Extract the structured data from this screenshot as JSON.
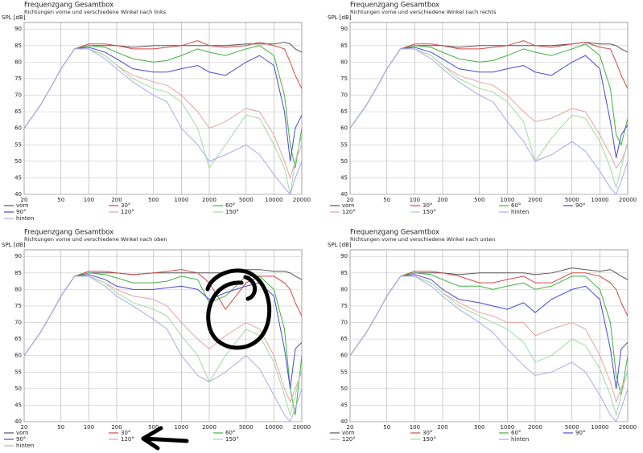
{
  "chart_data": [
    {
      "type": "line",
      "title": "Frequenzgang Gesamtbox",
      "subtitle": "Richtungen vorne und verschiedene Winkel nach links",
      "y_label": "SPL [dB]",
      "log_x": true,
      "xlim": [
        20,
        20000
      ],
      "ylim": [
        40,
        92
      ],
      "xticks": [
        20,
        50,
        100,
        200,
        500,
        1000,
        2000,
        5000,
        10000,
        20000
      ],
      "yticks": [
        40,
        45,
        50,
        55,
        60,
        65,
        70,
        75,
        80,
        85,
        90
      ],
      "grid": true,
      "x": [
        20,
        30,
        40,
        50,
        70,
        100,
        150,
        200,
        300,
        500,
        700,
        1000,
        1500,
        2000,
        3000,
        5000,
        7000,
        10000,
        13000,
        15000,
        17000,
        20000
      ],
      "series": [
        {
          "name": "vorn",
          "color": "#555555",
          "values": [
            60,
            67,
            73,
            78,
            84,
            85,
            85,
            85,
            84.5,
            85,
            85,
            85,
            85,
            85,
            85,
            85.5,
            85.5,
            85.5,
            86,
            85.5,
            84,
            83
          ]
        },
        {
          "name": "30°",
          "color": "#d04848",
          "values": [
            60,
            67,
            73,
            78,
            84,
            85.5,
            85.5,
            85,
            84,
            84,
            84.5,
            85,
            86.5,
            85,
            84.5,
            85,
            86,
            85,
            84,
            80,
            76,
            72
          ]
        },
        {
          "name": "60°",
          "color": "#40b040",
          "values": [
            60,
            67,
            73,
            78,
            84,
            85,
            84.5,
            83,
            81,
            80,
            80.5,
            82,
            84,
            83,
            82,
            84,
            85,
            82,
            70,
            55,
            48,
            60
          ]
        },
        {
          "name": "90°",
          "color": "#4848d0",
          "values": [
            60,
            67,
            73,
            78,
            84,
            84.5,
            83,
            81,
            78,
            77,
            77,
            78,
            79,
            77,
            76,
            80,
            82,
            79,
            65,
            50,
            60,
            64
          ]
        },
        {
          "name": "120°",
          "color": "#e4a4a4",
          "values": [
            60,
            67,
            73,
            78,
            84,
            84,
            82,
            79,
            76,
            74,
            73,
            70,
            65,
            60,
            62,
            66,
            65,
            58,
            50,
            45,
            50,
            55
          ]
        },
        {
          "name": "150°",
          "color": "#a4d8a4",
          "values": [
            60,
            67,
            73,
            78,
            84,
            84,
            82,
            79,
            75,
            72,
            71,
            68,
            60,
            48,
            55,
            64,
            63,
            55,
            48,
            40,
            50,
            58
          ]
        },
        {
          "name": "hinten",
          "color": "#aaaaea",
          "values": [
            60,
            67,
            73,
            78,
            84,
            84,
            81,
            78,
            74,
            70,
            68,
            60,
            55,
            50,
            52,
            55,
            52,
            46,
            42,
            40,
            45,
            50
          ]
        }
      ]
    },
    {
      "type": "line",
      "title": "Frequenzgang Gesamtbox",
      "subtitle": "Richtungen vorne und verschiedene Winkel nach rechts",
      "y_label": "SPL [dB]",
      "log_x": true,
      "xlim": [
        20,
        20000
      ],
      "ylim": [
        40,
        92
      ],
      "xticks": [
        20,
        50,
        100,
        200,
        500,
        1000,
        2000,
        5000,
        10000,
        20000
      ],
      "yticks": [
        40,
        45,
        50,
        55,
        60,
        65,
        70,
        75,
        80,
        85,
        90
      ],
      "grid": true,
      "x": [
        20,
        30,
        40,
        50,
        70,
        100,
        150,
        200,
        300,
        500,
        700,
        1000,
        1500,
        2000,
        3000,
        5000,
        7000,
        10000,
        13000,
        15000,
        17000,
        20000
      ],
      "series": [
        {
          "name": "vorn",
          "color": "#555555",
          "values": [
            60,
            67,
            73,
            78,
            84,
            85,
            85,
            85,
            84.5,
            85,
            85,
            85,
            85,
            85,
            85,
            85.5,
            86,
            85.5,
            85.5,
            85,
            84,
            83
          ]
        },
        {
          "name": "30°",
          "color": "#d04848",
          "values": [
            60,
            67,
            73,
            78,
            84,
            85.5,
            85.5,
            85,
            84,
            84,
            84.5,
            85,
            86.5,
            85,
            84.5,
            85.5,
            86,
            84.5,
            84,
            80,
            76,
            72
          ]
        },
        {
          "name": "60°",
          "color": "#40b040",
          "values": [
            60,
            67,
            73,
            78,
            84,
            85,
            84.5,
            83,
            81,
            80,
            80.5,
            82,
            84,
            83,
            82,
            84,
            85.5,
            82,
            72,
            58,
            55,
            63
          ]
        },
        {
          "name": "90°",
          "color": "#4848d0",
          "values": [
            60,
            67,
            73,
            78,
            84,
            84.5,
            83,
            81,
            78,
            77,
            77,
            78,
            79,
            77,
            76,
            80,
            82,
            78,
            62,
            51,
            58,
            61
          ]
        },
        {
          "name": "120°",
          "color": "#e4a4a4",
          "values": [
            60,
            67,
            73,
            78,
            84,
            84,
            82,
            79,
            76,
            74,
            73,
            70,
            65,
            62,
            63,
            66,
            65,
            58,
            52,
            48,
            50,
            55
          ]
        },
        {
          "name": "150°",
          "color": "#a4d8a4",
          "values": [
            60,
            67,
            73,
            78,
            84,
            84,
            82,
            79,
            75,
            72,
            71,
            68,
            62,
            50,
            57,
            64,
            63,
            56,
            48,
            42,
            48,
            56
          ]
        },
        {
          "name": "hinten",
          "color": "#aaaaea",
          "values": [
            60,
            67,
            73,
            78,
            84,
            84,
            81,
            78,
            74,
            70,
            68,
            62,
            56,
            50,
            52,
            56,
            53,
            47,
            42,
            40,
            44,
            50
          ]
        }
      ]
    },
    {
      "type": "line",
      "title": "Frequenzgang Gesamtbox",
      "subtitle": "Richtungen vorne und verschiedene Winkel nach oben",
      "y_label": "SPL [dB]",
      "log_x": true,
      "xlim": [
        20,
        20000
      ],
      "ylim": [
        40,
        92
      ],
      "xticks": [
        20,
        50,
        100,
        200,
        500,
        1000,
        2000,
        5000,
        10000,
        20000
      ],
      "yticks": [
        40,
        45,
        50,
        55,
        60,
        65,
        70,
        75,
        80,
        85,
        90
      ],
      "grid": true,
      "x": [
        20,
        30,
        40,
        50,
        70,
        100,
        150,
        200,
        300,
        500,
        700,
        1000,
        1500,
        2000,
        3000,
        5000,
        7000,
        10000,
        13000,
        15000,
        17000,
        20000
      ],
      "series": [
        {
          "name": "vorn",
          "color": "#555555",
          "values": [
            60,
            67,
            73,
            78,
            84,
            85,
            85,
            85,
            84.5,
            85,
            85,
            85,
            85,
            85,
            85,
            86,
            86,
            85.5,
            85.5,
            85,
            84,
            83
          ]
        },
        {
          "name": "30°",
          "color": "#d04848",
          "values": [
            60,
            67,
            73,
            78,
            84,
            85.5,
            85.5,
            85,
            84.5,
            85,
            85.5,
            86,
            85,
            82,
            74,
            82,
            84,
            84,
            82,
            80,
            76,
            72
          ]
        },
        {
          "name": "60°",
          "color": "#40b040",
          "values": [
            60,
            67,
            73,
            78,
            84,
            85,
            84.5,
            83.5,
            82,
            82,
            82.5,
            84,
            83,
            76,
            78,
            84,
            84,
            80,
            68,
            50,
            42,
            60
          ]
        },
        {
          "name": "90°",
          "color": "#4848d0",
          "values": [
            60,
            67,
            73,
            78,
            84,
            84.5,
            83,
            81,
            80,
            80,
            80.5,
            81,
            80,
            77,
            79,
            81,
            82,
            78,
            62,
            50,
            62,
            64
          ]
        },
        {
          "name": "120°",
          "color": "#e4a4a4",
          "values": [
            60,
            67,
            73,
            78,
            84,
            84,
            82,
            80,
            78,
            77,
            75,
            70,
            65,
            62,
            66,
            70,
            68,
            60,
            50,
            46,
            50,
            55
          ]
        },
        {
          "name": "150°",
          "color": "#a4d8a4",
          "values": [
            60,
            67,
            73,
            78,
            84,
            84,
            82,
            79,
            76,
            74,
            72,
            66,
            60,
            52,
            60,
            68,
            66,
            58,
            48,
            42,
            48,
            56
          ]
        },
        {
          "name": "hinten",
          "color": "#aaaaea",
          "values": [
            60,
            67,
            73,
            78,
            84,
            84,
            81,
            78,
            75,
            71,
            68,
            60,
            54,
            52,
            55,
            60,
            56,
            48,
            42,
            40,
            44,
            50
          ]
        }
      ]
    },
    {
      "type": "line",
      "title": "Frequenzgang Gesamtbox",
      "subtitle": "Richtungen vorne und verschiedene Winkel nach unten",
      "y_label": "SPL [dB]",
      "log_x": true,
      "xlim": [
        20,
        20000
      ],
      "ylim": [
        40,
        92
      ],
      "xticks": [
        20,
        50,
        100,
        200,
        500,
        1000,
        2000,
        5000,
        10000,
        20000
      ],
      "yticks": [
        40,
        45,
        50,
        55,
        60,
        65,
        70,
        75,
        80,
        85,
        90
      ],
      "grid": true,
      "x": [
        20,
        30,
        40,
        50,
        70,
        100,
        150,
        200,
        300,
        500,
        700,
        1000,
        1500,
        2000,
        3000,
        5000,
        7000,
        10000,
        13000,
        15000,
        17000,
        20000
      ],
      "series": [
        {
          "name": "vorn",
          "color": "#555555",
          "values": [
            60,
            67,
            73,
            78,
            84,
            85,
            85,
            85,
            84.5,
            85,
            85,
            85,
            85,
            84.5,
            85,
            86.5,
            86,
            85.5,
            86,
            85,
            84,
            83
          ]
        },
        {
          "name": "30°",
          "color": "#d04848",
          "values": [
            60,
            67,
            73,
            78,
            84,
            85.5,
            85.5,
            85,
            84,
            82,
            82,
            83,
            84,
            82,
            82,
            85,
            85,
            84,
            82,
            80,
            76,
            72
          ]
        },
        {
          "name": "60°",
          "color": "#40b040",
          "values": [
            60,
            67,
            73,
            78,
            84,
            85,
            84.5,
            83,
            81,
            81,
            80,
            81,
            82,
            80,
            81,
            84,
            84,
            80,
            70,
            54,
            48,
            60
          ]
        },
        {
          "name": "90°",
          "color": "#4848d0",
          "values": [
            60,
            67,
            73,
            78,
            84,
            84.5,
            83,
            80,
            77,
            76,
            75,
            74,
            76,
            73,
            77,
            80,
            81,
            77,
            62,
            50,
            62,
            64
          ]
        },
        {
          "name": "120°",
          "color": "#e4a4a4",
          "values": [
            60,
            67,
            73,
            78,
            84,
            84,
            82,
            79,
            76,
            73,
            72,
            70,
            70,
            66,
            68,
            70,
            68,
            60,
            52,
            46,
            50,
            55
          ]
        },
        {
          "name": "150°",
          "color": "#a4d8a4",
          "values": [
            60,
            67,
            73,
            78,
            84,
            84,
            82,
            79,
            75,
            72,
            70,
            68,
            64,
            58,
            60,
            65,
            63,
            56,
            48,
            42,
            48,
            56
          ]
        },
        {
          "name": "hinten",
          "color": "#aaaaea",
          "values": [
            60,
            67,
            73,
            78,
            84,
            84,
            81,
            78,
            74,
            70,
            67,
            62,
            57,
            54,
            55,
            58,
            55,
            48,
            42,
            40,
            44,
            50
          ]
        }
      ]
    }
  ]
}
